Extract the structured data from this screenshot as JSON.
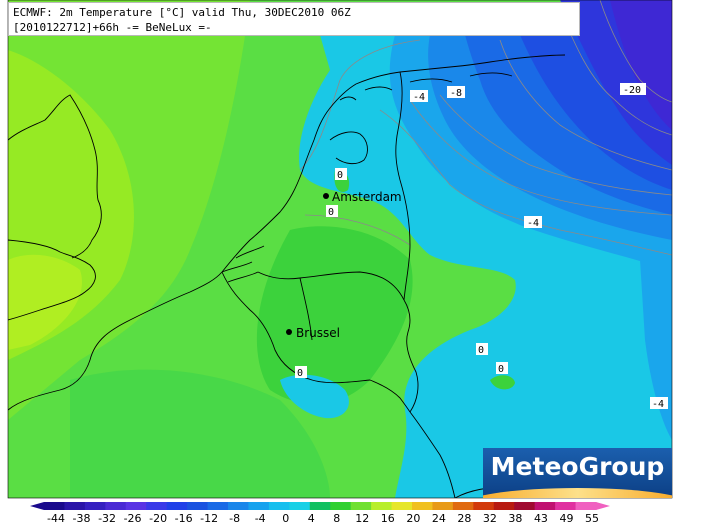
{
  "header": {
    "line1": "ECMWF: 2m Temperature [°C] valid Thu, 30DEC2010 06Z",
    "line2": "[2010122712]+66h -= BeNeLux =-"
  },
  "cities": [
    {
      "name": "Amsterdam"
    },
    {
      "name": "Brussel"
    }
  ],
  "isotherm_labels": [
    "-4",
    "-8",
    "-20",
    "0",
    "0",
    "-4",
    "0",
    "0",
    "0",
    "-4"
  ],
  "logo": {
    "text": "MeteoGroup"
  },
  "colorbar": {
    "ticks": [
      "-44",
      "-38",
      "-32",
      "-26",
      "-20",
      "-16",
      "-12",
      "-8",
      "-4",
      "0",
      "4",
      "8",
      "12",
      "16",
      "20",
      "24",
      "28",
      "32",
      "38",
      "43",
      "49",
      "55"
    ],
    "colors": [
      "#1a0a8c",
      "#2a15a8",
      "#3520c0",
      "#4a2ad4",
      "#5a34e4",
      "#3a3ae8",
      "#2040e8",
      "#1a52e0",
      "#1a6ae6",
      "#1a86ea",
      "#16a2ee",
      "#16bfee",
      "#18d0e6",
      "#10c060",
      "#30d030",
      "#70e030",
      "#b8ee2a",
      "#e6e62a",
      "#f0c020",
      "#e89a18",
      "#e06a10",
      "#d23a0a",
      "#b81a10",
      "#a00a30",
      "#c01070",
      "#e030a0",
      "#f060c0"
    ]
  },
  "colors": {
    "sea_green": "#5ee05e",
    "land_green": "#48d848",
    "england_lime": "#8ee81e",
    "cold_cyan": "#18c8e8",
    "cold_blue": "#1a6ae6",
    "deep_blue": "#3a2ad8"
  }
}
